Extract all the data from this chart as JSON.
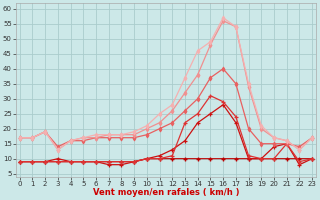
{
  "xlabel": "Vent moyen/en rafales ( km/h )",
  "background_color": "#cce8e8",
  "grid_color": "#aacccc",
  "x_ticks": [
    0,
    1,
    2,
    3,
    4,
    5,
    6,
    7,
    8,
    9,
    10,
    11,
    12,
    13,
    14,
    15,
    16,
    17,
    18,
    19,
    20,
    21,
    22,
    23
  ],
  "y_ticks": [
    5,
    10,
    15,
    20,
    25,
    30,
    35,
    40,
    45,
    50,
    55,
    60
  ],
  "ylim": [
    4,
    62
  ],
  "xlim": [
    -0.3,
    23.3
  ],
  "series": [
    {
      "name": "darkest_red_line",
      "color": "#bb0000",
      "lw": 0.8,
      "marker": "+",
      "markersize": 3,
      "markeredgewidth": 1.0,
      "y": [
        9,
        9,
        9,
        9,
        9,
        9,
        9,
        9,
        9,
        9,
        10,
        10,
        10,
        10,
        10,
        10,
        10,
        10,
        10,
        10,
        10,
        10,
        10,
        10
      ]
    },
    {
      "name": "dark_red_line",
      "color": "#cc1111",
      "lw": 0.9,
      "marker": "+",
      "markersize": 3,
      "markeredgewidth": 0.9,
      "y": [
        9,
        9,
        9,
        10,
        9,
        9,
        9,
        8,
        8,
        9,
        10,
        11,
        13,
        16,
        22,
        25,
        28,
        22,
        10,
        10,
        14,
        15,
        8,
        10
      ]
    },
    {
      "name": "medium_red_line",
      "color": "#dd3333",
      "lw": 0.9,
      "marker": "+",
      "markersize": 3,
      "markeredgewidth": 0.9,
      "y": [
        9,
        9,
        9,
        9,
        9,
        9,
        9,
        9,
        9,
        9,
        10,
        10,
        11,
        22,
        25,
        31,
        29,
        24,
        11,
        10,
        10,
        15,
        9,
        10
      ]
    },
    {
      "name": "light_red_line",
      "color": "#e86060",
      "lw": 0.9,
      "marker": "d",
      "markersize": 2.5,
      "markeredgewidth": 0.7,
      "y": [
        17,
        17,
        19,
        14,
        16,
        16,
        17,
        17,
        17,
        17,
        18,
        20,
        22,
        26,
        30,
        37,
        40,
        35,
        20,
        15,
        15,
        15,
        14,
        17
      ]
    },
    {
      "name": "lighter_pink_line",
      "color": "#f09090",
      "lw": 0.9,
      "marker": "d",
      "markersize": 2.5,
      "markeredgewidth": 0.7,
      "y": [
        17,
        17,
        19,
        13,
        16,
        17,
        17,
        18,
        18,
        18,
        20,
        22,
        26,
        32,
        38,
        48,
        56,
        54,
        34,
        20,
        17,
        16,
        13,
        17
      ]
    },
    {
      "name": "lightest_pink_line",
      "color": "#f5b0b0",
      "lw": 0.9,
      "marker": "d",
      "markersize": 2.5,
      "markeredgewidth": 0.7,
      "y": [
        17,
        17,
        19,
        13,
        16,
        17,
        18,
        18,
        18,
        19,
        21,
        25,
        28,
        37,
        46,
        49,
        57,
        54,
        35,
        21,
        17,
        16,
        13,
        17
      ]
    }
  ]
}
